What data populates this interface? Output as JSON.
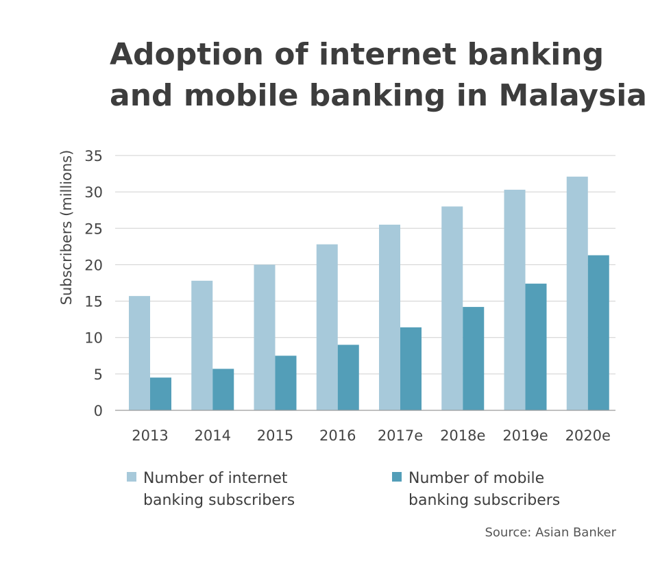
{
  "title_line1": "Adoption of internet banking",
  "title_line2": "and mobile banking in Malaysia",
  "source": "Source: Asian Banker",
  "colors": {
    "internet": "#a7c9da",
    "mobile": "#539eb8",
    "grid": "#cfcfcf",
    "axis": "#444444"
  },
  "legend": [
    {
      "label": "Number of internet banking subscribers",
      "color": "#a7c9da"
    },
    {
      "label": "Number of mobile banking subscribers",
      "color": "#539eb8"
    }
  ],
  "chart_data": {
    "type": "bar",
    "title": "Adoption of internet banking and mobile banking in Malaysia",
    "xlabel": "",
    "ylabel": "Subscribers (millions)",
    "ylim": [
      0,
      35
    ],
    "yticks": [
      0,
      5,
      10,
      15,
      20,
      25,
      30,
      35
    ],
    "grid": true,
    "legend_position": "bottom",
    "categories": [
      "2013",
      "2014",
      "2015",
      "2016",
      "2017e",
      "2018e",
      "2019e",
      "2020e"
    ],
    "series": [
      {
        "name": "Number of internet banking subscribers",
        "values": [
          15.7,
          17.8,
          20.0,
          22.8,
          25.5,
          28.0,
          30.3,
          32.1
        ]
      },
      {
        "name": "Number of mobile banking subscribers",
        "values": [
          4.5,
          5.7,
          7.5,
          9.0,
          11.4,
          14.2,
          17.4,
          21.3
        ]
      }
    ]
  }
}
